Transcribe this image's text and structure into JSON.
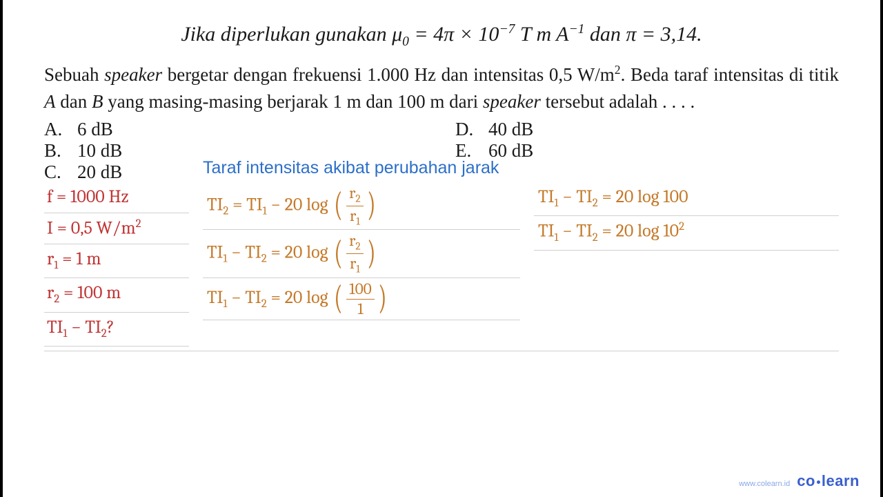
{
  "headline": {
    "pre": "Jika diperlukan gunakan ",
    "mu": "μ",
    "muSub": "0",
    "eq": " = 4π × 10",
    "exp": "−7",
    "unit": " T m A",
    "unitExp": "−1",
    "and": " dan π = 3,14."
  },
  "question": {
    "p1": "Sebuah ",
    "speaker": "speaker",
    "p2": " bergetar dengan frekuensi 1.000 Hz dan intensitas 0,5 W/m",
    "sq": "2",
    "p3": ". Beda taraf intensitas di titik ",
    "A": "A",
    "p4": " dan ",
    "B": "B",
    "p5": " yang masing-masing berjarak 1 m dan 100 m dari ",
    "p6": " tersebut adalah . . . ."
  },
  "options": {
    "a": {
      "l": "A.",
      "v": "6 dB"
    },
    "b": {
      "l": "B.",
      "v": "10 dB"
    },
    "c": {
      "l": "C.",
      "v": "20 dB"
    },
    "d": {
      "l": "D.",
      "v": "40 dB"
    },
    "e": {
      "l": "E.",
      "v": "60 dB"
    }
  },
  "workTitle": "Taraf intensitas akibat perubahan jarak",
  "given": {
    "f": "f = 1000 Hz",
    "I_pre": "I = 0,5 W/m",
    "I_exp": "2",
    "r1_pre": "r",
    "r1_sub": "1",
    "r1_post": " = 1 m",
    "r2_pre": "r",
    "r2_sub": "2",
    "r2_post": " = 100 m",
    "q_pre1": "TI",
    "q_s1": "1",
    "q_mid": " − TI",
    "q_s2": "2",
    "q_end": "?"
  },
  "work": {
    "line1": {
      "a": "TI",
      "as": "2",
      "b": " = TI",
      "bs": "1",
      "c": " − 20 log ",
      "fn_a": "r",
      "fn_s": "2",
      "fd_a": "r",
      "fd_s": "1"
    },
    "line2": {
      "a": "TI",
      "as": "1",
      "b": " − TI",
      "bs": "2",
      "c": " = 20 log ",
      "fn_a": "r",
      "fn_s": "2",
      "fd_a": "r",
      "fd_s": "1"
    },
    "line3": {
      "a": "TI",
      "as": "1",
      "b": " − TI",
      "bs": "2",
      "c": " = 20 log ",
      "fn": "100",
      "fd": "1"
    }
  },
  "right": {
    "r1": {
      "a": "TI",
      "as": "1",
      "b": " − TI",
      "bs": "2",
      "c": " = 20 log 100"
    },
    "r2": {
      "a": "TI",
      "as": "1",
      "b": " − TI",
      "bs": "2",
      "c": " = 20 log 10",
      "exp": "2"
    }
  },
  "brand": {
    "url": "www.colearn.id",
    "name1": "co",
    "name2": "learn"
  },
  "colors": {
    "given": "#c03636",
    "work": "#c47a2a",
    "title": "#2c6fc9",
    "brand": "#3a5fcd"
  }
}
